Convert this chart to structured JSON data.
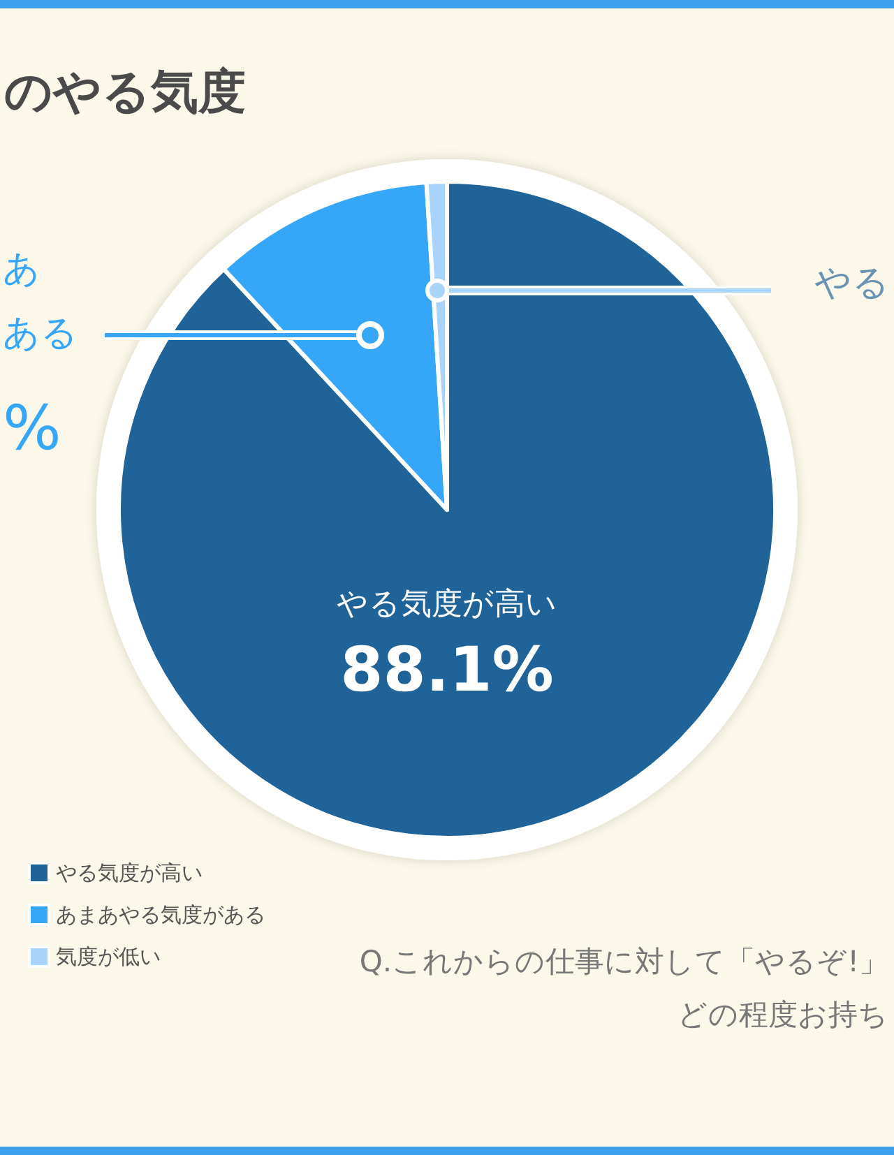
{
  "chart_data": {
    "type": "pie",
    "title": "のやる気度",
    "categories": [
      "やる気度が高い",
      "あまあやる気度がある",
      "気度が低い"
    ],
    "values": [
      88.1,
      10.9,
      1.0
    ],
    "colors": [
      "#1f6399",
      "#36a6f9",
      "#a8d4fb"
    ],
    "value_labels": [
      "やる気度が高い\n88.1%",
      null,
      null
    ],
    "legend": "bottom left",
    "annotations": [
      "あ",
      "ある",
      "%",
      "やる",
      "Q.これからの仕事に対して「やるぞ!」",
      "どの程度お持ち"
    ]
  }
}
